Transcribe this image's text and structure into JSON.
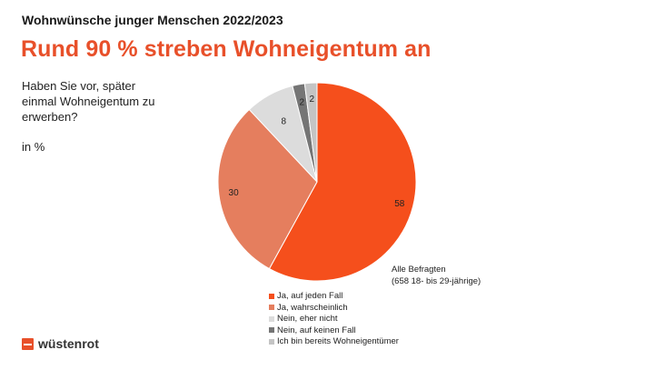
{
  "header": {
    "kicker": "Wohnwünsche junger Menschen 2022/2023",
    "headline": "Rund 90 % streben Wohneigentum an"
  },
  "question": "Haben Sie vor, später einmal Wohneigentum zu erwerben?",
  "unit": "in %",
  "note": {
    "line1": "Alle Befragten",
    "line2": "(658 18- bis 29-jährige)"
  },
  "brand": {
    "name": "wüstenrot",
    "color": "#e8502a"
  },
  "chart_data": {
    "type": "pie",
    "title": "",
    "unit": "%",
    "categories": [
      "Ja, auf jeden Fall",
      "Ja, wahrscheinlich",
      "Nein, eher nicht",
      "Nein, auf keinen Fall",
      "Ich bin bereits Wohneigentümer"
    ],
    "values": [
      58,
      30,
      8,
      2,
      2
    ],
    "colors": [
      "#f54f1c",
      "#e57e5e",
      "#dcdcdc",
      "#757575",
      "#c4c4c4"
    ],
    "start": "12 o'clock",
    "direction": "clockwise",
    "legend_position": "bottom"
  }
}
